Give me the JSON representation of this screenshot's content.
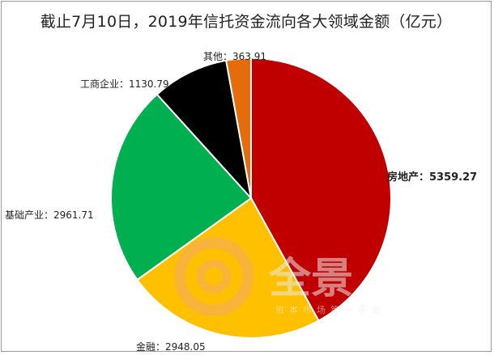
{
  "chart_data": {
    "type": "pie",
    "title": "截止7月10日，2019年信托资金流向各大领域金额（亿元）",
    "slices": [
      {
        "label": "房地产",
        "value": 5359.27,
        "display": "房地产：5359.27",
        "color": "#c00000"
      },
      {
        "label": "金融",
        "value": 2948.05,
        "display": "金融：2948.05",
        "color": "#ffc000"
      },
      {
        "label": "基础产业",
        "value": 2961.71,
        "display": "基础产业：2961.71",
        "color": "#00b050"
      },
      {
        "label": "工商企业",
        "value": 1130.79,
        "display": "工商企业：1130.79",
        "color": "#000000"
      },
      {
        "label": "其他",
        "value": 363.91,
        "display": "其他：363.91",
        "color": "#e46c0a"
      }
    ]
  },
  "watermark": {
    "logo_text": "全景",
    "sub_text": "资本市场第一平台"
  }
}
